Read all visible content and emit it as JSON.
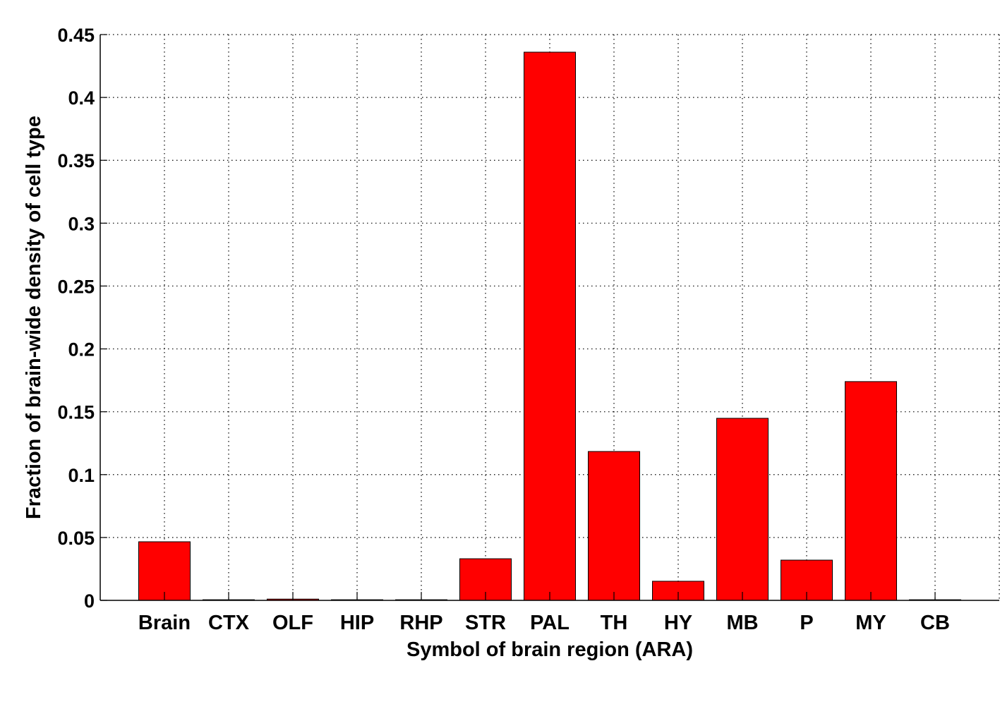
{
  "chart_data": {
    "type": "bar",
    "title": "",
    "xlabel": "Symbol of brain region (ARA)",
    "ylabel": "Fraction of brain-wide density of cell type",
    "categories": [
      "Brain",
      "CTX",
      "OLF",
      "HIP",
      "RHP",
      "STR",
      "PAL",
      "TH",
      "HY",
      "MB",
      "P",
      "MY",
      "CB"
    ],
    "values": [
      0.0466,
      0.0005,
      0.001,
      0.0005,
      0.0005,
      0.0331,
      0.436,
      0.1184,
      0.0152,
      0.1448,
      0.032,
      0.174,
      0.0005
    ],
    "ylim": [
      0,
      0.45
    ],
    "xlim": [
      0,
      14
    ],
    "yticks": [
      "0",
      "0.05",
      "0.1",
      "0.15",
      "0.2",
      "0.25",
      "0.3",
      "0.35",
      "0.4",
      "0.45"
    ],
    "grid": true,
    "bar_color": "#ff0000"
  }
}
